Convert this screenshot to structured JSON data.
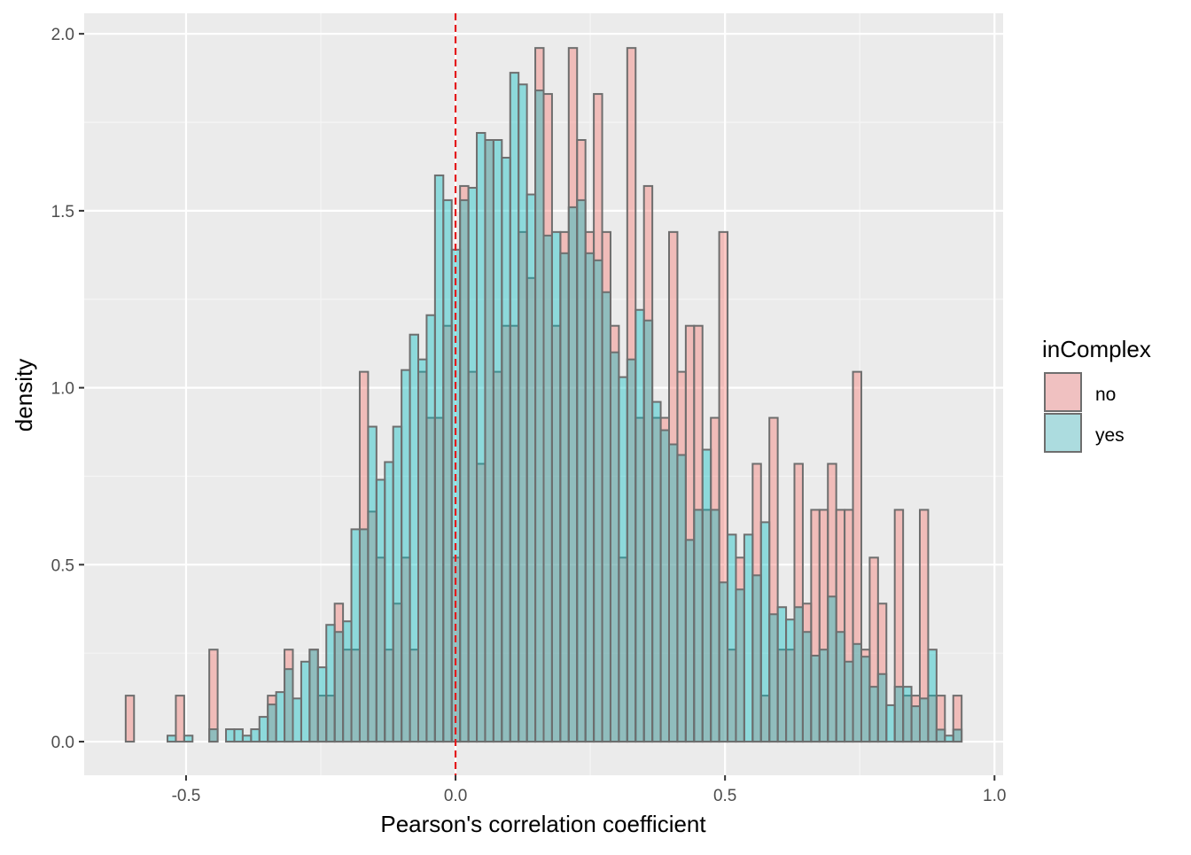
{
  "chart_data": {
    "type": "histogram",
    "title": "",
    "xlabel": "Pearson's correlation coefficient",
    "ylabel": "density",
    "xlim": [
      -0.689,
      1.016
    ],
    "ylim": [
      -0.095,
      2.058
    ],
    "x_ticks": [
      -0.5,
      0.0,
      0.5,
      1.0
    ],
    "x_tick_labels": [
      "-0.5",
      "0.0",
      "0.5",
      "1.0"
    ],
    "y_ticks": [
      0.0,
      0.5,
      1.0,
      1.5,
      2.0
    ],
    "y_tick_labels": [
      "0.0",
      "0.5",
      "1.0",
      "1.5",
      "2.0"
    ],
    "grid": true,
    "bins": {
      "x_min": -0.612,
      "bin_width": 0.01551,
      "count": 100
    },
    "reference_line": {
      "x": 0.0,
      "style": "dashed",
      "color": "#E41A1C"
    },
    "legend": {
      "title": "inComplex",
      "placement": "right",
      "entries": [
        "no",
        "yes"
      ]
    },
    "series": [
      {
        "name": "no",
        "color": "#F8766D",
        "values": [
          0.13,
          0,
          0,
          0,
          0,
          0,
          0.13,
          0,
          0,
          0,
          0.26,
          0,
          0,
          0,
          0,
          0,
          0,
          0.13,
          0,
          0.26,
          0,
          0,
          0.26,
          0.13,
          0.13,
          0.39,
          0.26,
          0.26,
          1.045,
          0.65,
          0.52,
          0.26,
          0.39,
          0.52,
          0.26,
          1.045,
          0.915,
          0.915,
          1.175,
          0.52,
          1.57,
          1.045,
          0.785,
          1.7,
          1.045,
          1.175,
          1.175,
          1.44,
          1.31,
          1.96,
          1.83,
          1.175,
          1.44,
          1.96,
          1.7,
          1.44,
          1.83,
          1.44,
          1.175,
          0.52,
          1.96,
          0.915,
          1.57,
          0.915,
          0.915,
          1.44,
          1.045,
          1.175,
          1.175,
          0.655,
          0.915,
          1.44,
          0.26,
          0.52,
          0,
          0.785,
          0.13,
          0.915,
          0.26,
          0.26,
          0.785,
          0.39,
          0.655,
          0.655,
          0.785,
          0.655,
          0.655,
          1.045,
          0.26,
          0.52,
          0.39,
          0,
          0.655,
          0.13,
          0.13,
          0.655,
          0.13,
          0.13,
          0,
          0.13
        ]
      },
      {
        "name": "yes",
        "color": "#00BFC4",
        "values": [
          0,
          0,
          0,
          0,
          0,
          0.017,
          0,
          0.017,
          0,
          0,
          0.035,
          0,
          0.035,
          0.035,
          0.017,
          0.035,
          0.07,
          0.105,
          0.14,
          0.205,
          0.122,
          0.226,
          0.26,
          0.21,
          0.33,
          0.31,
          0.34,
          0.6,
          0.6,
          0.89,
          0.74,
          0.79,
          0.89,
          1.05,
          1.15,
          1.08,
          1.205,
          1.6,
          1.53,
          1.39,
          1.53,
          1.565,
          1.72,
          1.7,
          1.7,
          1.65,
          1.89,
          1.857,
          1.546,
          1.84,
          1.43,
          1.44,
          1.38,
          1.51,
          1.53,
          1.38,
          1.36,
          1.27,
          1.1,
          1.03,
          1.08,
          1.22,
          1.19,
          0.96,
          0.88,
          0.84,
          0.81,
          0.57,
          0.655,
          0.825,
          0.655,
          0.45,
          0.585,
          0.43,
          0.585,
          0.47,
          0.62,
          0.36,
          0.38,
          0.345,
          0.38,
          0.31,
          0.243,
          0.26,
          0.41,
          0.31,
          0.226,
          0.276,
          0.24,
          0.155,
          0.191,
          0.103,
          0.155,
          0.155,
          0.1,
          0.122,
          0.26,
          0.034,
          0.017,
          0.034
        ]
      }
    ]
  }
}
